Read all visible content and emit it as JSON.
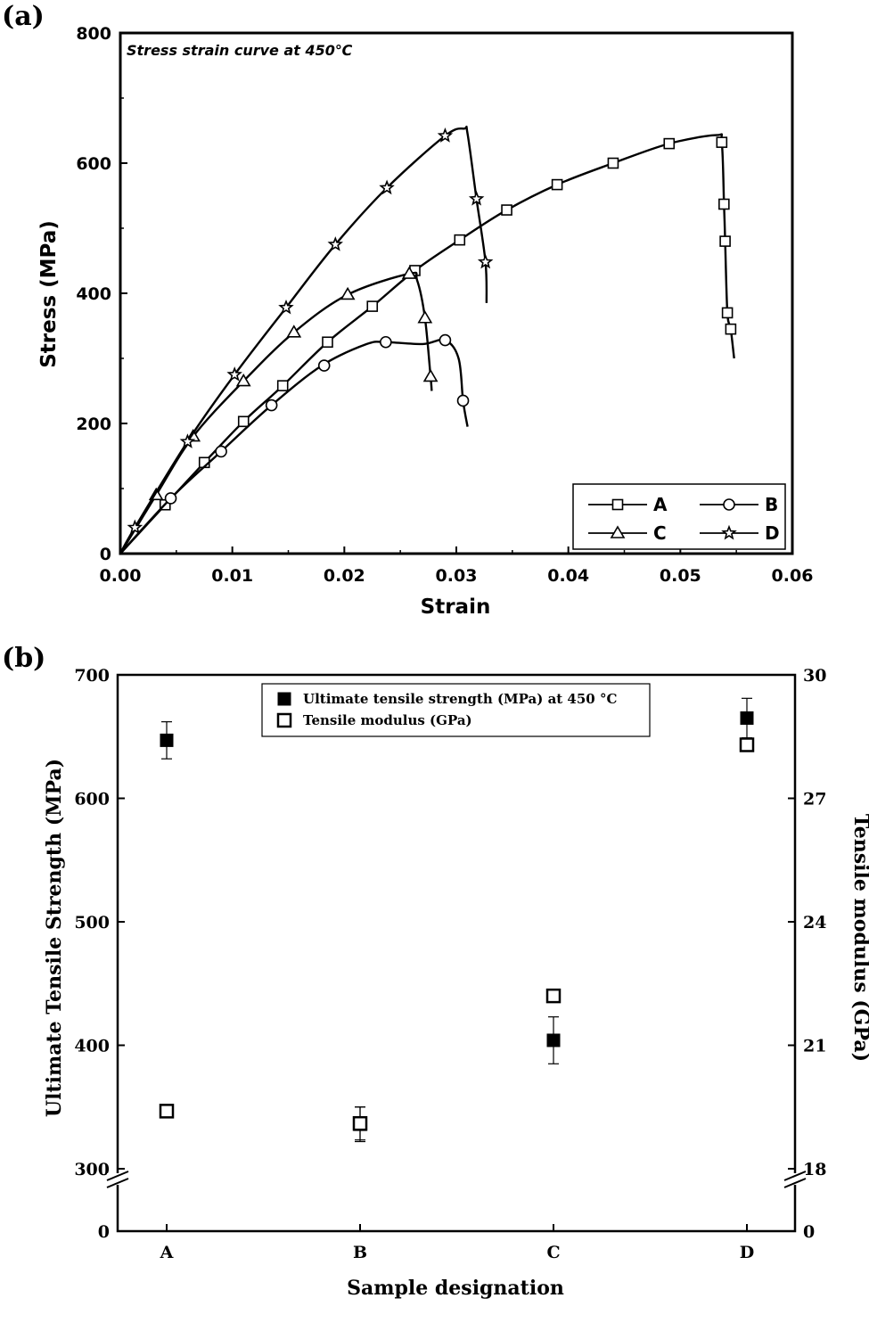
{
  "chart_data": [
    {
      "type": "line",
      "panel_label": "(a)",
      "annotation": "Stress strain curve at 450℃",
      "xlabel": "Strain",
      "ylabel": "Stress (MPa)",
      "xlim": [
        0.0,
        0.06
      ],
      "ylim": [
        0,
        800
      ],
      "xticks": [
        "0.00",
        "0.01",
        "0.02",
        "0.03",
        "0.04",
        "0.05",
        "0.06"
      ],
      "yticks": [
        "0",
        "200",
        "400",
        "600",
        "800"
      ],
      "legend_position": "bottom-right",
      "series": [
        {
          "name": "A",
          "marker": "square",
          "x": [
            0,
            0.004,
            0.0075,
            0.011,
            0.0145,
            0.0185,
            0.0225,
            0.0263,
            0.0303,
            0.0345,
            0.039,
            0.044,
            0.049,
            0.0532,
            0.0537,
            0.0539,
            0.054,
            0.0542,
            0.0545,
            0.0548
          ],
          "y": [
            0,
            75,
            140,
            203,
            258,
            325,
            380,
            435,
            482,
            528,
            567,
            600,
            630,
            643,
            632,
            537,
            480,
            370,
            345,
            300
          ],
          "marker_x": [
            0.004,
            0.0075,
            0.011,
            0.0145,
            0.0185,
            0.0225,
            0.0263,
            0.0303,
            0.0345,
            0.039,
            0.044,
            0.049,
            0.0537,
            0.0539,
            0.054,
            0.0542,
            0.0545
          ],
          "marker_y": [
            75,
            140,
            203,
            258,
            325,
            380,
            435,
            482,
            528,
            567,
            600,
            630,
            632,
            537,
            480,
            370,
            345
          ]
        },
        {
          "name": "B",
          "marker": "circle",
          "x": [
            0,
            0.0045,
            0.009,
            0.0135,
            0.018,
            0.022,
            0.0237,
            0.027,
            0.029,
            0.0302,
            0.0306,
            0.031
          ],
          "y": [
            0,
            85,
            157,
            228,
            289,
            322,
            325,
            322,
            328,
            300,
            235,
            195
          ],
          "marker_x": [
            0.0045,
            0.009,
            0.0135,
            0.0182,
            0.0237,
            0.029,
            0.0306
          ],
          "marker_y": [
            85,
            157,
            228,
            289,
            325,
            328,
            235
          ]
        },
        {
          "name": "C",
          "marker": "triangle",
          "x": [
            0,
            0.0032,
            0.0065,
            0.011,
            0.0155,
            0.0203,
            0.0258,
            0.0265,
            0.0272,
            0.0277,
            0.0278
          ],
          "y": [
            0,
            90,
            180,
            265,
            340,
            398,
            430,
            420,
            362,
            272,
            250
          ],
          "marker_x": [
            0.0032,
            0.0065,
            0.011,
            0.0155,
            0.0203,
            0.0258,
            0.0272,
            0.0277
          ],
          "marker_y": [
            90,
            180,
            265,
            340,
            398,
            430,
            362,
            272
          ]
        },
        {
          "name": "D",
          "marker": "star",
          "x": [
            0,
            0.0013,
            0.006,
            0.0102,
            0.0148,
            0.0192,
            0.0238,
            0.029,
            0.0307,
            0.031,
            0.0318,
            0.0326,
            0.0327
          ],
          "y": [
            0,
            40,
            172,
            275,
            378,
            475,
            562,
            642,
            653,
            645,
            545,
            448,
            385
          ],
          "marker_x": [
            0.0013,
            0.006,
            0.0102,
            0.0148,
            0.0192,
            0.0238,
            0.029,
            0.0318,
            0.0326
          ],
          "marker_y": [
            40,
            172,
            275,
            378,
            475,
            562,
            642,
            545,
            448
          ]
        }
      ]
    },
    {
      "type": "scatter",
      "panel_label": "(b)",
      "xlabel": "Sample designation",
      "ylabel_left": "Ultimate Tensile Strength (MPa)",
      "ylabel_right": "Tensile modulus (GPa)",
      "categories": [
        "A",
        "B",
        "C",
        "D"
      ],
      "left_axis": {
        "range": [
          300,
          700
        ],
        "break_below": 300,
        "bottom_label": "0",
        "ticks": [
          "300",
          "400",
          "500",
          "600",
          "700"
        ]
      },
      "right_axis": {
        "range": [
          18,
          30
        ],
        "break_below": 18,
        "bottom_label": "0",
        "ticks": [
          "18",
          "21",
          "24",
          "27",
          "30"
        ]
      },
      "legend_position": "top-center",
      "series": [
        {
          "name": "Ultimate tensile strength (MPa) at 450 °C",
          "marker": "filled-square",
          "axis": "left",
          "values": [
            647,
            336,
            404,
            665
          ],
          "errors": [
            15,
            14,
            19,
            16
          ]
        },
        {
          "name": "Tensile modulus (GPa)",
          "marker": "open-square",
          "axis": "right",
          "values": [
            19.4,
            19.1,
            22.2,
            28.3
          ],
          "errors": [
            0,
            0.4,
            0,
            0
          ]
        }
      ]
    }
  ]
}
